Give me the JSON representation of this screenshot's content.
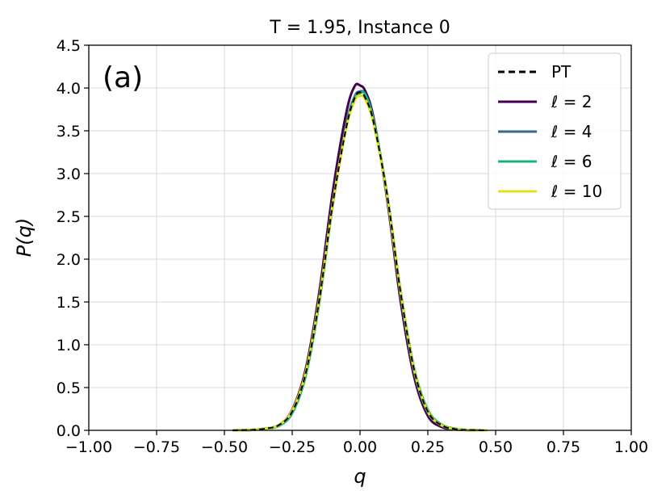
{
  "chart_data": {
    "type": "line",
    "title": "T = 1.95, Instance 0",
    "panel_label": "(a)",
    "xlabel": "q",
    "ylabel": "P(q)",
    "xlim": [
      -1.0,
      1.0
    ],
    "ylim": [
      0.0,
      4.5
    ],
    "grid": true,
    "legend_position": "top-right",
    "xticks": [
      "−1.00",
      "−0.75",
      "−0.50",
      "−0.25",
      "0.00",
      "0.25",
      "0.50",
      "0.75",
      "1.00"
    ],
    "yticks": [
      "0.0",
      "0.5",
      "1.0",
      "1.5",
      "2.0",
      "2.5",
      "3.0",
      "3.5",
      "4.0",
      "4.5"
    ],
    "series": [
      {
        "name": "PT",
        "color": "#000000",
        "dashed": true,
        "x": [
          -0.47,
          -0.4,
          -0.35,
          -0.3,
          -0.25,
          -0.2,
          -0.15,
          -0.1,
          -0.05,
          -0.02,
          0.0,
          0.02,
          0.05,
          0.1,
          0.15,
          0.2,
          0.25,
          0.3,
          0.35,
          0.4,
          0.47
        ],
        "y": [
          0.0,
          0.005,
          0.02,
          0.06,
          0.22,
          0.67,
          1.53,
          2.66,
          3.55,
          3.88,
          3.95,
          3.88,
          3.6,
          2.75,
          1.6,
          0.7,
          0.22,
          0.06,
          0.015,
          0.004,
          0.0
        ]
      },
      {
        "name": "ℓ = 2",
        "color": "#440154",
        "dashed": false,
        "x": [
          -0.47,
          -0.4,
          -0.35,
          -0.3,
          -0.25,
          -0.2,
          -0.15,
          -0.1,
          -0.05,
          -0.02,
          0.0,
          0.02,
          0.05,
          0.1,
          0.15,
          0.2,
          0.25,
          0.3,
          0.35,
          0.4,
          0.47
        ],
        "y": [
          0.0,
          0.005,
          0.02,
          0.06,
          0.24,
          0.72,
          1.62,
          2.8,
          3.72,
          4.02,
          4.03,
          3.96,
          3.65,
          2.7,
          1.5,
          0.62,
          0.17,
          0.04,
          0.01,
          0.003,
          0.0
        ]
      },
      {
        "name": "ℓ = 4",
        "color": "#31688e",
        "dashed": false,
        "x": [
          -0.47,
          -0.4,
          -0.35,
          -0.3,
          -0.25,
          -0.2,
          -0.15,
          -0.1,
          -0.05,
          -0.02,
          0.0,
          0.02,
          0.05,
          0.1,
          0.15,
          0.2,
          0.25,
          0.3,
          0.35,
          0.4,
          0.47
        ],
        "y": [
          0.0,
          0.005,
          0.02,
          0.06,
          0.22,
          0.66,
          1.52,
          2.66,
          3.58,
          3.9,
          3.96,
          3.92,
          3.62,
          2.74,
          1.58,
          0.68,
          0.21,
          0.06,
          0.015,
          0.004,
          0.0
        ]
      },
      {
        "name": "ℓ = 6",
        "color": "#21b07a",
        "dashed": false,
        "x": [
          -0.47,
          -0.4,
          -0.35,
          -0.3,
          -0.25,
          -0.2,
          -0.15,
          -0.1,
          -0.05,
          -0.02,
          0.0,
          0.02,
          0.05,
          0.1,
          0.15,
          0.2,
          0.25,
          0.3,
          0.35,
          0.4,
          0.47
        ],
        "y": [
          0.0,
          0.005,
          0.02,
          0.05,
          0.2,
          0.64,
          1.5,
          2.64,
          3.56,
          3.88,
          3.94,
          3.92,
          3.62,
          2.76,
          1.62,
          0.72,
          0.24,
          0.07,
          0.02,
          0.005,
          0.0
        ]
      },
      {
        "name": "ℓ = 10",
        "color": "#dde318",
        "dashed": false,
        "x": [
          -0.47,
          -0.4,
          -0.35,
          -0.3,
          -0.25,
          -0.2,
          -0.15,
          -0.1,
          -0.05,
          -0.02,
          0.0,
          0.02,
          0.05,
          0.1,
          0.15,
          0.2,
          0.25,
          0.3,
          0.35,
          0.4,
          0.47
        ],
        "y": [
          0.0,
          0.005,
          0.02,
          0.06,
          0.23,
          0.68,
          1.54,
          2.66,
          3.54,
          3.85,
          3.91,
          3.86,
          3.58,
          2.74,
          1.6,
          0.7,
          0.22,
          0.06,
          0.015,
          0.004,
          0.0
        ]
      }
    ]
  }
}
